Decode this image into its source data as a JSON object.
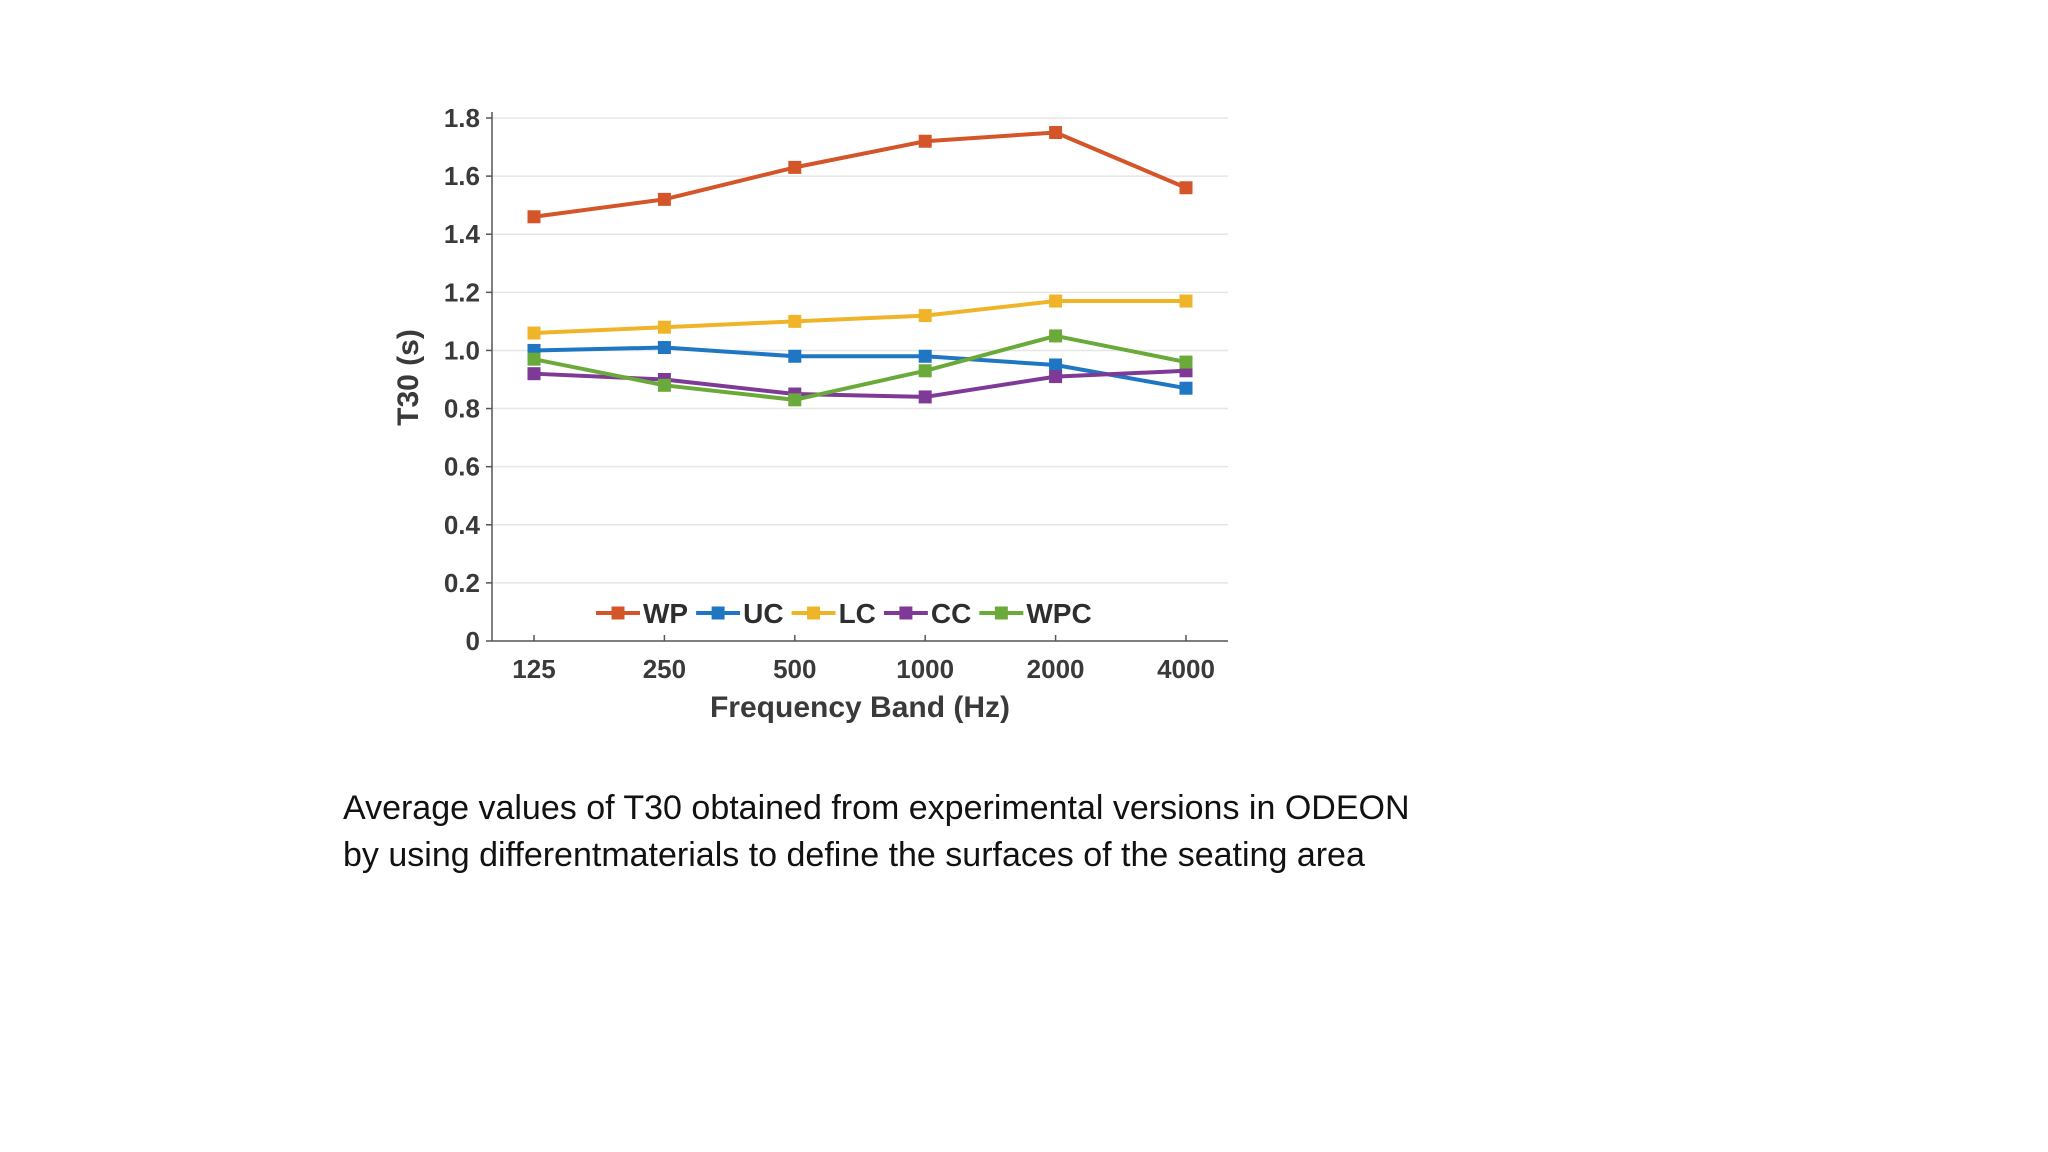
{
  "chart_data": {
    "type": "line",
    "title": "",
    "xlabel": "Frequency Band (Hz)",
    "ylabel": "T30 (s)",
    "categories": [
      "125",
      "250",
      "500",
      "1000",
      "2000",
      "4000"
    ],
    "yticks": [
      "0",
      "0.2",
      "0.4",
      "0.6",
      "0.8",
      "1.0",
      "1.2",
      "1.4",
      "1.6",
      "1.8"
    ],
    "ylim": [
      0,
      1.8
    ],
    "grid": true,
    "legend_position": "bottom-center",
    "series": [
      {
        "name": "WP",
        "color": "#d4552a",
        "values": [
          1.46,
          1.52,
          1.63,
          1.72,
          1.75,
          1.56
        ]
      },
      {
        "name": "UC",
        "color": "#1f77c4",
        "values": [
          1.0,
          1.01,
          0.98,
          0.98,
          0.95,
          0.87
        ]
      },
      {
        "name": "LC",
        "color": "#f0b429",
        "values": [
          1.06,
          1.08,
          1.1,
          1.12,
          1.17,
          1.17
        ]
      },
      {
        "name": "CC",
        "color": "#7e3a96",
        "values": [
          0.92,
          0.9,
          0.85,
          0.84,
          0.91,
          0.93
        ]
      },
      {
        "name": "WPC",
        "color": "#6aaa3a",
        "values": [
          0.97,
          0.88,
          0.83,
          0.93,
          1.05,
          0.96
        ]
      }
    ]
  },
  "caption": "Average values of T30 obtained from experimental versions in ODEON by using differentmaterials to define the surfaces of the seating area"
}
